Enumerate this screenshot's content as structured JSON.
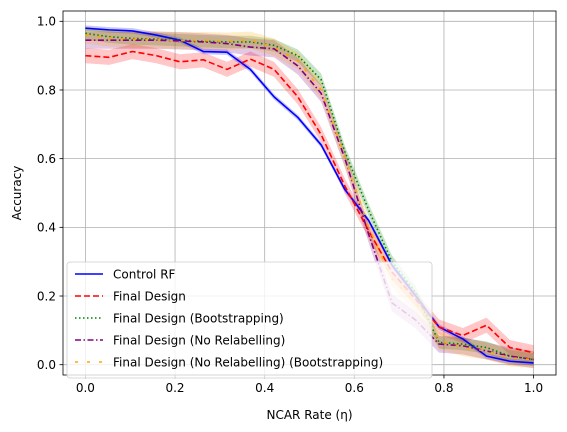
{
  "chart_data": {
    "type": "line",
    "title": "",
    "xlabel": "NCAR Rate (η)",
    "ylabel": "Accuracy",
    "xlim": [
      -0.05,
      1.05
    ],
    "ylim": [
      -0.03,
      1.03
    ],
    "xticks": [
      "0.0",
      "0.2",
      "0.4",
      "0.6",
      "0.8",
      "1.0"
    ],
    "yticks": [
      "0.0",
      "0.2",
      "0.4",
      "0.6",
      "0.8",
      "1.0"
    ],
    "grid": true,
    "legend_position": "lower-left",
    "x": [
      0.0,
      0.053,
      0.105,
      0.158,
      0.211,
      0.263,
      0.316,
      0.368,
      0.421,
      0.474,
      0.526,
      0.579,
      0.632,
      0.684,
      0.737,
      0.789,
      0.842,
      0.895,
      0.947,
      1.0
    ],
    "series": [
      {
        "name": "Control RF",
        "color": "#0000ff",
        "style": "solid",
        "values": [
          0.98,
          0.975,
          0.972,
          0.96,
          0.945,
          0.912,
          0.91,
          0.86,
          0.78,
          0.72,
          0.64,
          0.51,
          0.42,
          0.29,
          0.2,
          0.11,
          0.075,
          0.025,
          0.01,
          0.005
        ],
        "band": 0.008
      },
      {
        "name": "Final Design",
        "color": "#ff0000",
        "style": "dashed",
        "values": [
          0.9,
          0.895,
          0.912,
          0.9,
          0.882,
          0.888,
          0.86,
          0.89,
          0.86,
          0.78,
          0.67,
          0.52,
          0.39,
          0.27,
          0.19,
          0.11,
          0.085,
          0.115,
          0.05,
          0.035
        ],
        "band": 0.022
      },
      {
        "name": "Final Design (Bootstrapping)",
        "color": "#008000",
        "style": "dotted",
        "values": [
          0.965,
          0.955,
          0.95,
          0.948,
          0.945,
          0.942,
          0.94,
          0.94,
          0.93,
          0.9,
          0.83,
          0.62,
          0.45,
          0.3,
          0.21,
          0.065,
          0.06,
          0.05,
          0.025,
          0.015
        ],
        "band": 0.018
      },
      {
        "name": "Final Design (No Relabelling)",
        "color": "#800080",
        "style": "dashdot",
        "values": [
          0.945,
          0.945,
          0.945,
          0.945,
          0.943,
          0.94,
          0.935,
          0.925,
          0.92,
          0.87,
          0.79,
          0.6,
          0.38,
          0.18,
          0.13,
          0.06,
          0.055,
          0.04,
          0.025,
          0.015
        ],
        "band": 0.025
      },
      {
        "name": "Final Design (No Relabelling) (Bootstrapping)",
        "color": "#ffa500",
        "style": "loosedash",
        "values": [
          0.96,
          0.952,
          0.948,
          0.946,
          0.944,
          0.944,
          0.942,
          0.945,
          0.925,
          0.885,
          0.8,
          0.6,
          0.4,
          0.25,
          0.18,
          0.07,
          0.05,
          0.04,
          0.02,
          0.015
        ],
        "band": 0.025
      }
    ]
  }
}
